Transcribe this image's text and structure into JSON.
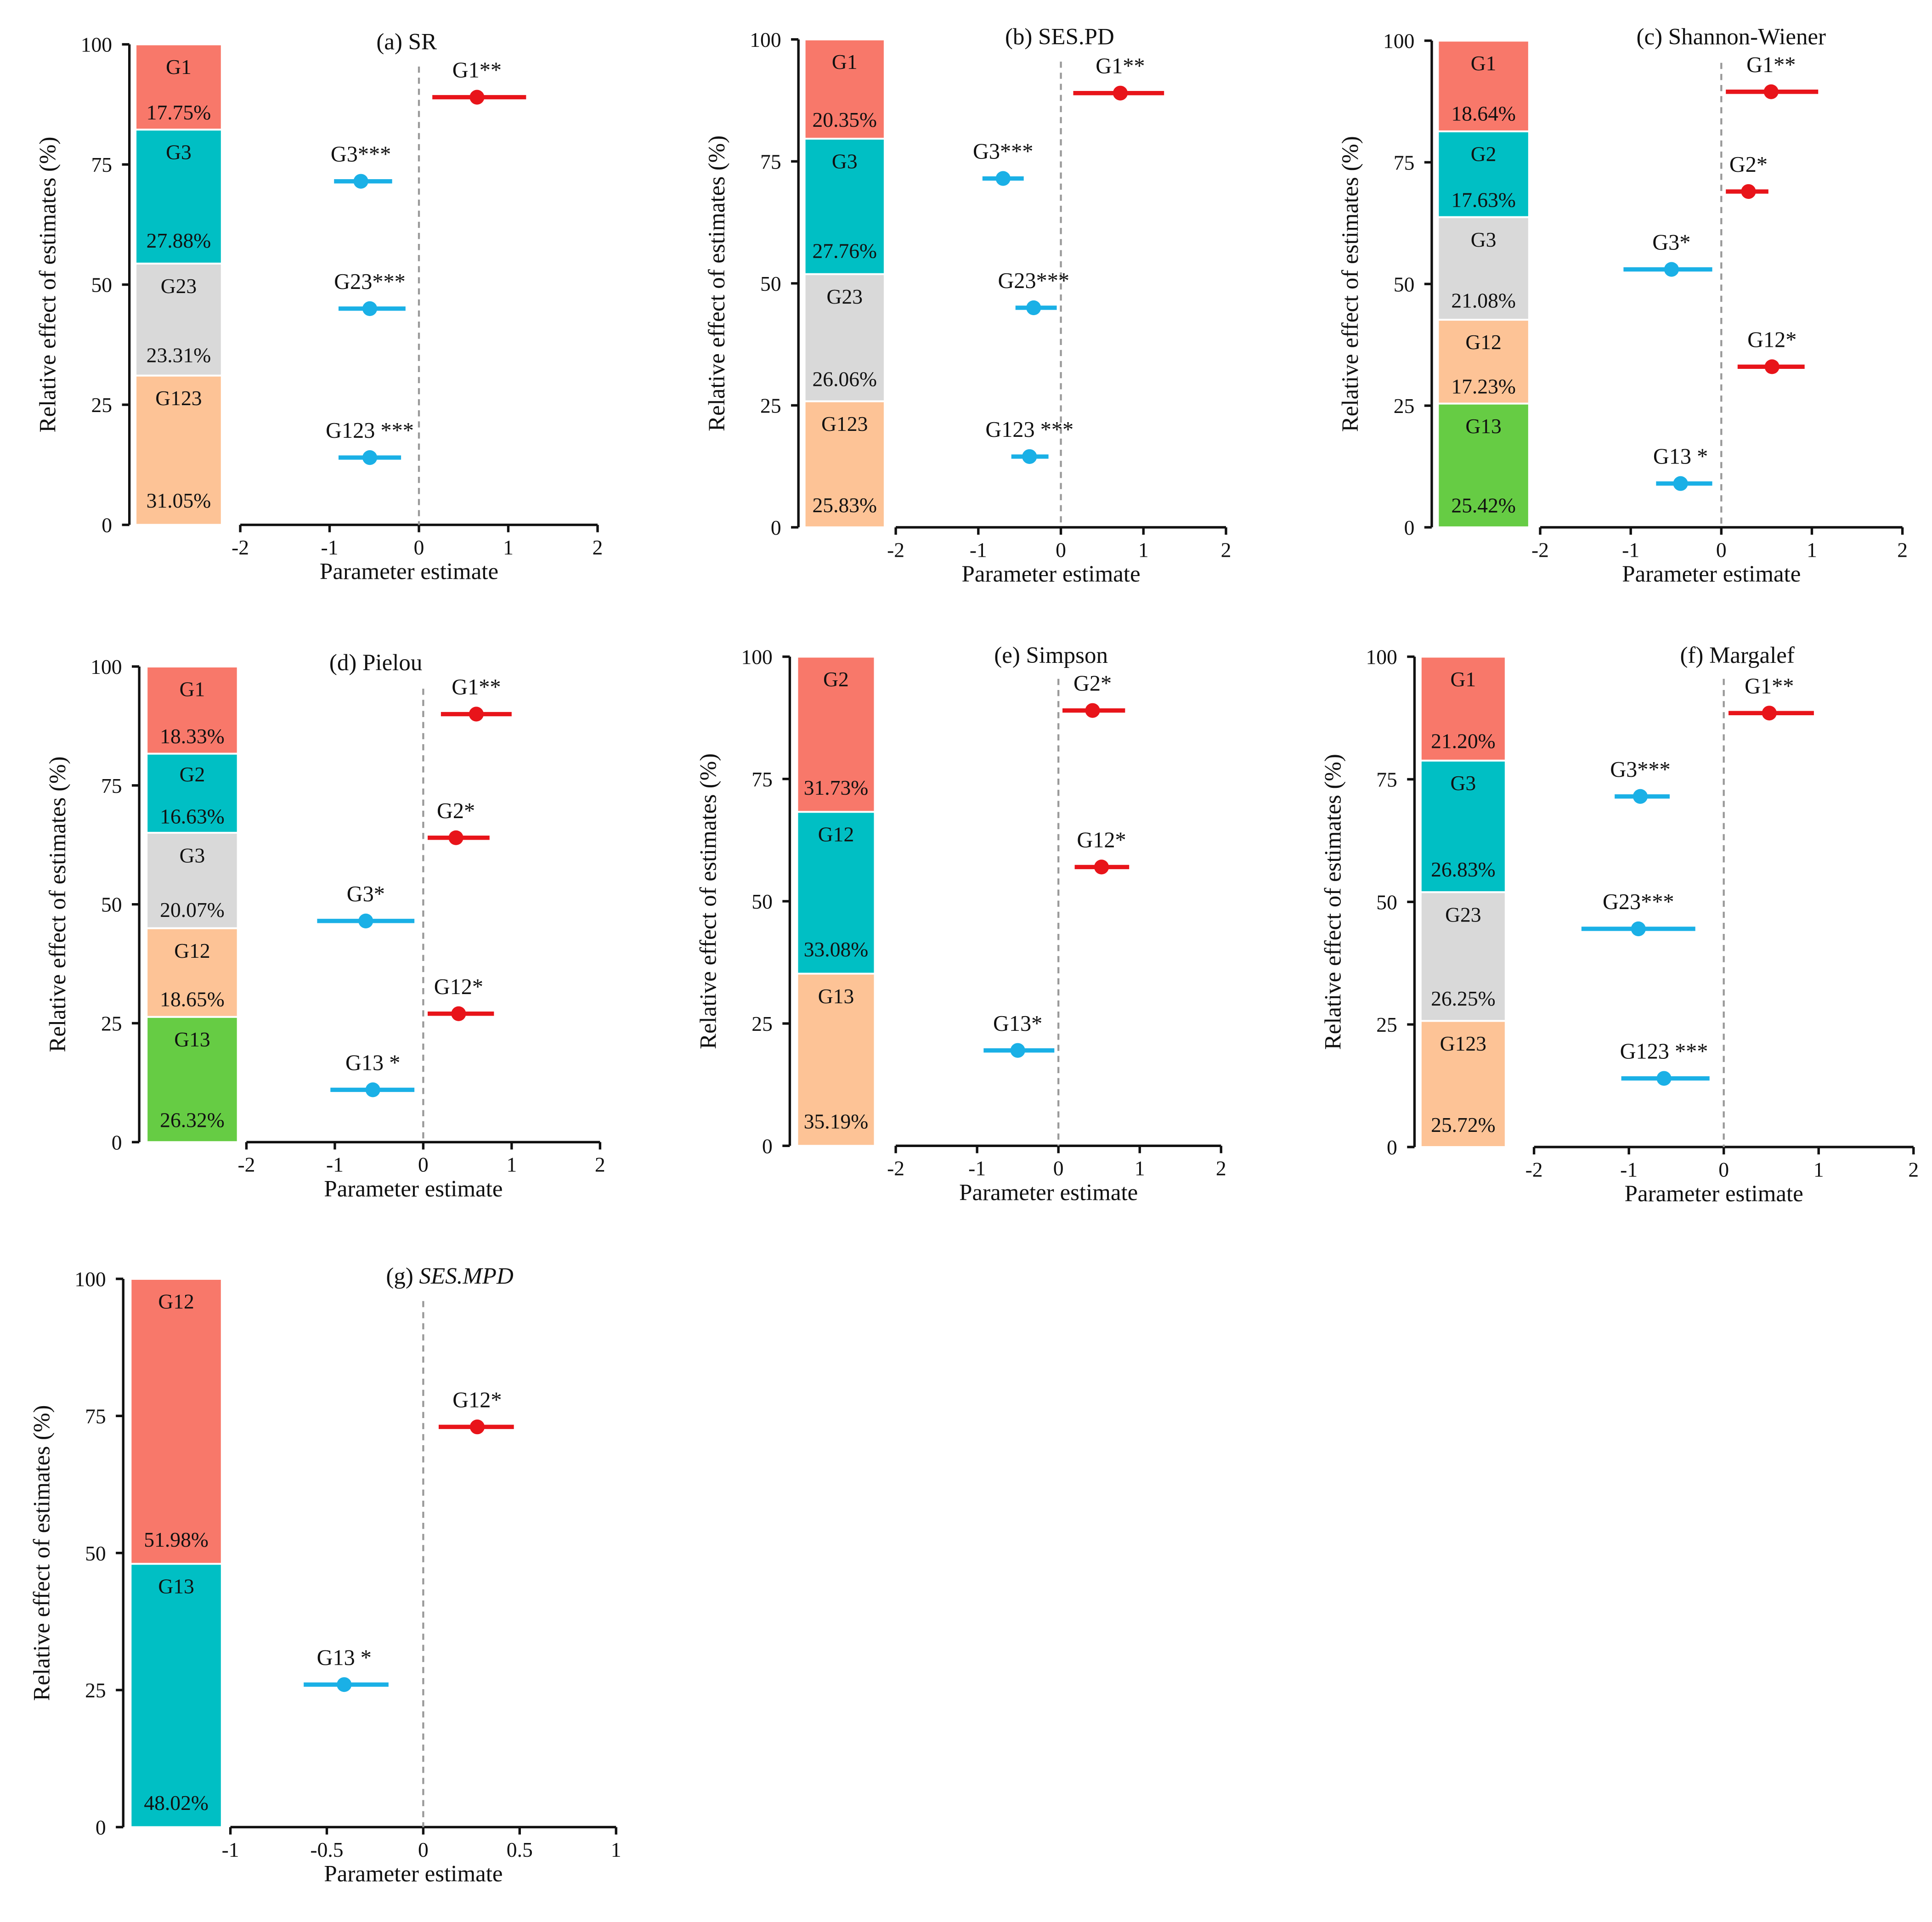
{
  "chart_data": [
    {
      "id": "a",
      "type": "forest+stacked-bar",
      "title": "(a) SR",
      "title_italic_part": "",
      "xlabel": "Parameter estimate",
      "ylabel": "Relative effect of estimates (%)",
      "xlim": [
        -2,
        2
      ],
      "xticks": [
        "-2",
        "-1",
        "0",
        "1",
        "2"
      ],
      "ylim": [
        0,
        100
      ],
      "yticks": [
        "0",
        "25",
        "50",
        "75",
        "100"
      ],
      "segments": [
        {
          "name": "G1",
          "value": 17.75,
          "label": "17.75%",
          "color": "#f8786a"
        },
        {
          "name": "G3",
          "value": 27.88,
          "label": "27.88%",
          "color": "#00bfc4"
        },
        {
          "name": "G23",
          "value": 23.31,
          "label": "23.31%",
          "color": "#d9d9d9"
        },
        {
          "name": "G123",
          "value": 31.05,
          "label": "31.05%",
          "color": "#fdc396"
        }
      ],
      "estimates": [
        {
          "label": "G1**",
          "y": 89,
          "est": 0.65,
          "lo": 0.15,
          "hi": 1.2,
          "color": "#e8141a"
        },
        {
          "label": "G3***",
          "y": 71.5,
          "est": -0.65,
          "lo": -0.95,
          "hi": -0.3,
          "color": "#1ab0e6"
        },
        {
          "label": "G23***",
          "y": 45,
          "est": -0.55,
          "lo": -0.9,
          "hi": -0.15,
          "color": "#1ab0e6"
        },
        {
          "label": "G123 ***",
          "y": 14,
          "est": -0.55,
          "lo": -0.9,
          "hi": -0.2,
          "color": "#1ab0e6"
        }
      ]
    },
    {
      "id": "b",
      "type": "forest+stacked-bar",
      "title": "(b) SES.PD",
      "title_italic_part": "",
      "xlabel": "Parameter estimate",
      "ylabel": "Relative effect of estimates (%)",
      "xlim": [
        -2,
        2
      ],
      "xticks": [
        "-2",
        "-1",
        "0",
        "1",
        "2"
      ],
      "ylim": [
        0,
        100
      ],
      "yticks": [
        "0",
        "25",
        "50",
        "75",
        "100"
      ],
      "segments": [
        {
          "name": "G1",
          "value": 20.35,
          "label": "20.35%",
          "color": "#f8786a"
        },
        {
          "name": "G3",
          "value": 27.76,
          "label": "27.76%",
          "color": "#00bfc4"
        },
        {
          "name": "G23",
          "value": 26.06,
          "label": "26.06%",
          "color": "#d9d9d9"
        },
        {
          "name": "G123",
          "value": 25.83,
          "label": "25.83%",
          "color": "#fdc396"
        }
      ],
      "estimates": [
        {
          "label": "G1**",
          "y": 89,
          "est": 0.72,
          "lo": 0.15,
          "hi": 1.25,
          "color": "#e8141a"
        },
        {
          "label": "G3***",
          "y": 71.5,
          "est": -0.7,
          "lo": -0.95,
          "hi": -0.45,
          "color": "#1ab0e6"
        },
        {
          "label": "G23***",
          "y": 45,
          "est": -0.33,
          "lo": -0.55,
          "hi": -0.05,
          "color": "#1ab0e6"
        },
        {
          "label": "G123 ***",
          "y": 14.5,
          "est": -0.38,
          "lo": -0.6,
          "hi": -0.15,
          "color": "#1ab0e6"
        }
      ]
    },
    {
      "id": "c",
      "type": "forest+stacked-bar",
      "title": "(c) Shannon-Wiener",
      "title_italic_part": "",
      "xlabel": "Parameter estimate",
      "ylabel": "Relative effect of estimates (%)",
      "xlim": [
        -2,
        2
      ],
      "xticks": [
        "-2",
        "-1",
        "0",
        "1",
        "2"
      ],
      "ylim": [
        0,
        100
      ],
      "yticks": [
        "0",
        "25",
        "50",
        "75",
        "100"
      ],
      "segments": [
        {
          "name": "G1",
          "value": 18.64,
          "label": "18.64%",
          "color": "#f8786a"
        },
        {
          "name": "G2",
          "value": 17.63,
          "label": "17.63%",
          "color": "#00bfc4"
        },
        {
          "name": "G3",
          "value": 21.08,
          "label": "21.08%",
          "color": "#d9d9d9"
        },
        {
          "name": "G12",
          "value": 17.23,
          "label": "17.23%",
          "color": "#fdc396"
        },
        {
          "name": "G13",
          "value": 25.42,
          "label": "25.42%",
          "color": "#66cc44"
        }
      ],
      "estimates": [
        {
          "label": "G1**",
          "y": 89.5,
          "est": 0.55,
          "lo": 0.05,
          "hi": 1.07,
          "color": "#e8141a"
        },
        {
          "label": "G2*",
          "y": 69,
          "est": 0.3,
          "lo": 0.05,
          "hi": 0.52,
          "color": "#e8141a"
        },
        {
          "label": "G3*",
          "y": 53,
          "est": -0.55,
          "lo": -1.08,
          "hi": -0.1,
          "color": "#1ab0e6"
        },
        {
          "label": "G12*",
          "y": 33,
          "est": 0.56,
          "lo": 0.18,
          "hi": 0.92,
          "color": "#e8141a"
        },
        {
          "label": "G13 *",
          "y": 9,
          "est": -0.45,
          "lo": -0.72,
          "hi": -0.1,
          "color": "#1ab0e6"
        }
      ]
    },
    {
      "id": "d",
      "type": "forest+stacked-bar",
      "title": "(d) Pielou",
      "title_italic_part": "",
      "xlabel": "Parameter estimate",
      "ylabel": "Relative effect of estimates (%)",
      "xlim": [
        -2,
        2
      ],
      "xticks": [
        "-2",
        "-1",
        "0",
        "1",
        "2"
      ],
      "ylim": [
        0,
        100
      ],
      "yticks": [
        "0",
        "25",
        "50",
        "75",
        "100"
      ],
      "segments": [
        {
          "name": "G1",
          "value": 18.33,
          "label": "18.33%",
          "color": "#f8786a"
        },
        {
          "name": "G2",
          "value": 16.63,
          "label": "16.63%",
          "color": "#00bfc4"
        },
        {
          "name": "G3",
          "value": 20.07,
          "label": "20.07%",
          "color": "#d9d9d9"
        },
        {
          "name": "G12",
          "value": 18.65,
          "label": "18.65%",
          "color": "#fdc396"
        },
        {
          "name": "G13",
          "value": 26.32,
          "label": "26.32%",
          "color": "#66cc44"
        }
      ],
      "estimates": [
        {
          "label": "G1**",
          "y": 90,
          "est": 0.6,
          "lo": 0.2,
          "hi": 1.0,
          "color": "#e8141a"
        },
        {
          "label": "G2*",
          "y": 64,
          "est": 0.37,
          "lo": 0.05,
          "hi": 0.75,
          "color": "#e8141a"
        },
        {
          "label": "G3*",
          "y": 46.5,
          "est": -0.65,
          "lo": -1.2,
          "hi": -0.1,
          "color": "#1ab0e6"
        },
        {
          "label": "G12*",
          "y": 27,
          "est": 0.4,
          "lo": 0.05,
          "hi": 0.8,
          "color": "#e8141a"
        },
        {
          "label": "G13 *",
          "y": 11,
          "est": -0.57,
          "lo": -1.05,
          "hi": -0.1,
          "color": "#1ab0e6"
        }
      ]
    },
    {
      "id": "e",
      "type": "forest+stacked-bar",
      "title": "(e) Simpson",
      "title_italic_part": "",
      "xlabel": "Parameter estimate",
      "ylabel": "Relative effect of estimates (%)",
      "xlim": [
        -2,
        2
      ],
      "xticks": [
        "-2",
        "-1",
        "0",
        "1",
        "2"
      ],
      "ylim": [
        0,
        100
      ],
      "yticks": [
        "0",
        "25",
        "50",
        "75",
        "100"
      ],
      "segments": [
        {
          "name": "G2",
          "value": 31.73,
          "label": "31.73%",
          "color": "#f8786a"
        },
        {
          "name": "G12",
          "value": 33.08,
          "label": "33.08%",
          "color": "#00bfc4"
        },
        {
          "name": "G13",
          "value": 35.19,
          "label": "35.19%",
          "color": "#fdc396"
        }
      ],
      "estimates": [
        {
          "label": "G2*",
          "y": 89,
          "est": 0.42,
          "lo": 0.05,
          "hi": 0.82,
          "color": "#e8141a"
        },
        {
          "label": "G12*",
          "y": 57,
          "est": 0.53,
          "lo": 0.2,
          "hi": 0.87,
          "color": "#e8141a"
        },
        {
          "label": "G13*",
          "y": 19.5,
          "est": -0.5,
          "lo": -0.92,
          "hi": -0.05,
          "color": "#1ab0e6"
        }
      ]
    },
    {
      "id": "f",
      "type": "forest+stacked-bar",
      "title": "(f) Margalef",
      "title_italic_part": "",
      "xlabel": "Parameter estimate",
      "ylabel": "Relative effect of estimates (%)",
      "xlim": [
        -2,
        2
      ],
      "xticks": [
        "-2",
        "-1",
        "0",
        "1",
        "2"
      ],
      "ylim": [
        0,
        100
      ],
      "yticks": [
        "0",
        "25",
        "50",
        "75",
        "100"
      ],
      "segments": [
        {
          "name": "G1",
          "value": 21.2,
          "label": "21.20%",
          "color": "#f8786a"
        },
        {
          "name": "G3",
          "value": 26.83,
          "label": "26.83%",
          "color": "#00bfc4"
        },
        {
          "name": "G23",
          "value": 26.25,
          "label": "26.25%",
          "color": "#d9d9d9"
        },
        {
          "name": "G123",
          "value": 25.72,
          "label": "25.72%",
          "color": "#fdc396"
        }
      ],
      "estimates": [
        {
          "label": "G1**",
          "y": 88.5,
          "est": 0.48,
          "lo": 0.05,
          "hi": 0.95,
          "color": "#e8141a"
        },
        {
          "label": "G3***",
          "y": 71.5,
          "est": -0.88,
          "lo": -1.15,
          "hi": -0.57,
          "color": "#1ab0e6"
        },
        {
          "label": "G23***",
          "y": 44.5,
          "est": -0.9,
          "lo": -1.5,
          "hi": -0.3,
          "color": "#1ab0e6"
        },
        {
          "label": "G123 ***",
          "y": 14,
          "est": -0.63,
          "lo": -1.08,
          "hi": -0.15,
          "color": "#1ab0e6"
        }
      ]
    },
    {
      "id": "g",
      "type": "forest+stacked-bar",
      "title": "(g) ",
      "title_italic_part": "SES.MPD",
      "xlabel": "Parameter estimate",
      "ylabel": "Relative effect of estimates (%)",
      "xlim": [
        -1,
        1
      ],
      "xticks": [
        "-1",
        "-0.5",
        "0",
        "0.5",
        "1"
      ],
      "ylim": [
        0,
        100
      ],
      "yticks": [
        "0",
        "25",
        "50",
        "75",
        "100"
      ],
      "segments": [
        {
          "name": "G12",
          "value": 51.98,
          "label": "51.98%",
          "color": "#f8786a"
        },
        {
          "name": "G13",
          "value": 48.02,
          "label": "48.02%",
          "color": "#00bfc4"
        }
      ],
      "estimates": [
        {
          "label": "G12*",
          "y": 73,
          "est": 0.28,
          "lo": 0.08,
          "hi": 0.47,
          "color": "#e8141a"
        },
        {
          "label": "G13 *",
          "y": 26,
          "est": -0.41,
          "lo": -0.62,
          "hi": -0.18,
          "color": "#1ab0e6"
        }
      ]
    }
  ]
}
